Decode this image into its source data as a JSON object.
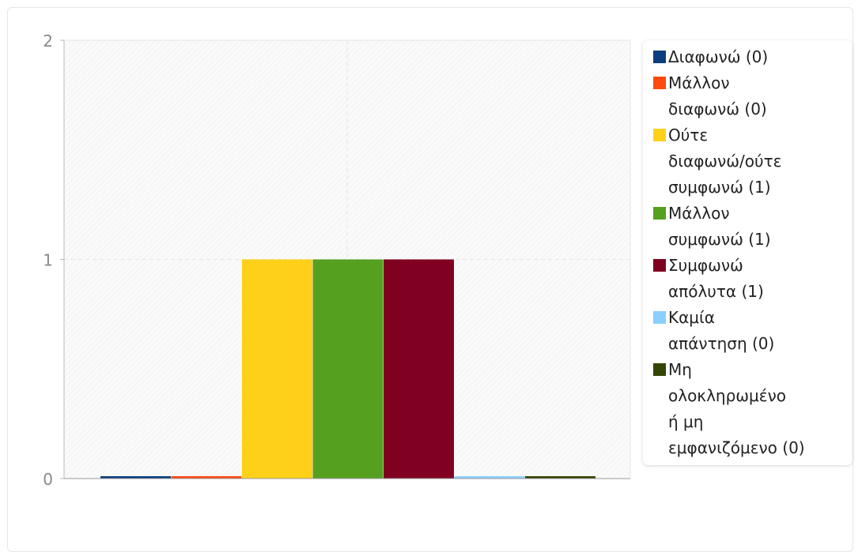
{
  "chart_data": {
    "type": "bar",
    "categories": [
      "Διαφωνώ (0)",
      "Μάλλον διαφωνώ (0)",
      "Ούτε διαφωνώ/ούτε συμφωνώ (1)",
      "Μάλλον συμφωνώ (1)",
      "Συμφωνώ απόλυτα (1)",
      "Καμία απάντηση (0)",
      "Μη ολοκληρωμένο ή μη εμφανιζόμενο (0)"
    ],
    "values": [
      0,
      0,
      1,
      1,
      1,
      0,
      0
    ],
    "colors": [
      "#0b3e7e",
      "#ff4a0f",
      "#ffd019",
      "#56a01f",
      "#7f0020",
      "#8acfff",
      "#344504"
    ],
    "ylim": [
      0,
      2
    ],
    "yticks": [
      "0",
      "1",
      "2"
    ],
    "grid": true,
    "legend_position": "right",
    "title": "",
    "xlabel": "",
    "ylabel": ""
  },
  "legend": {
    "items": [
      {
        "lines": [
          "Διαφωνώ (0)"
        ],
        "color": "#0b3e7e"
      },
      {
        "lines": [
          "Μάλλον",
          "διαφωνώ (0)"
        ],
        "color": "#ff4a0f"
      },
      {
        "lines": [
          "Ούτε",
          "διαφωνώ/ούτε",
          "συμφωνώ (1)"
        ],
        "color": "#ffd019"
      },
      {
        "lines": [
          "Μάλλον",
          "συμφωνώ (1)"
        ],
        "color": "#56a01f"
      },
      {
        "lines": [
          "Συμφωνώ",
          "απόλυτα (1)"
        ],
        "color": "#7f0020"
      },
      {
        "lines": [
          "Καμία",
          "απάντηση (0)"
        ],
        "color": "#8acfff"
      },
      {
        "lines": [
          "Μη",
          "ολοκληρωμένο",
          "ή μη",
          "εμφανιζόμενο (0)"
        ],
        "color": "#344504"
      }
    ]
  }
}
